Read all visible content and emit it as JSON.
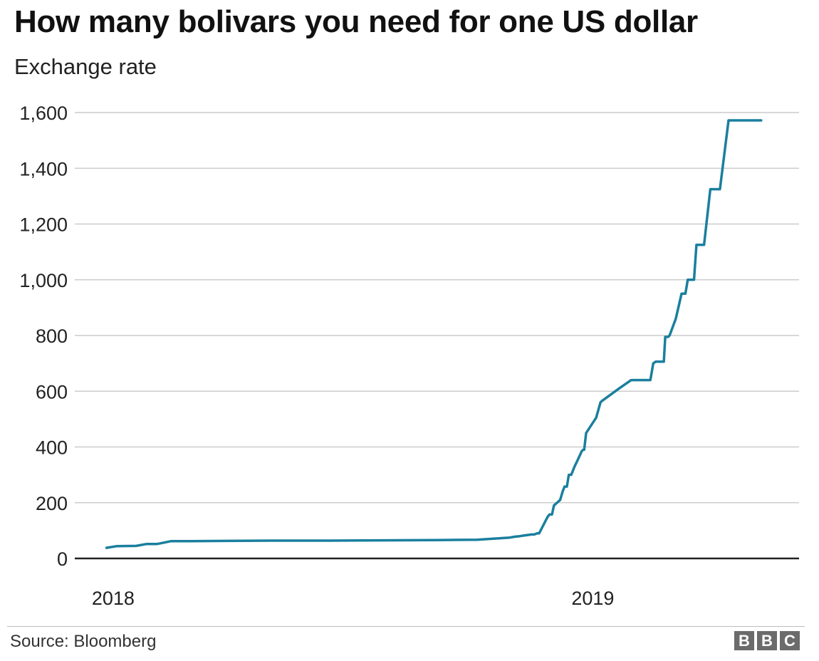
{
  "title": "How many bolivars you need for one US dollar",
  "subtitle": "Exchange rate",
  "source": "Source: Bloomberg",
  "logo": "BBC",
  "colors": {
    "line": "#1a7f9e",
    "grid": "#cccccc",
    "baseline": "#222222",
    "text": "#222222"
  },
  "chart_data": {
    "type": "line",
    "title": "How many bolivars you need for one US dollar",
    "subtitle": "Exchange rate",
    "xlabel": "",
    "ylabel": "",
    "ylim": [
      0,
      1600
    ],
    "yticks": [
      0,
      200,
      400,
      600,
      800,
      1000,
      1200,
      1400,
      1600
    ],
    "ytick_labels": [
      "0",
      "200",
      "400",
      "600",
      "800",
      "1,000",
      "1,200",
      "1,400",
      "1,600"
    ],
    "xlim": [
      2017.92,
      2019.43
    ],
    "xticks": [
      2018,
      2019
    ],
    "xtick_labels": [
      "2018",
      "2019"
    ],
    "grid": true,
    "series": [
      {
        "x": [
          2017.986,
          2018.007,
          2018.048,
          2018.07,
          2018.092,
          2018.121,
          2018.143,
          2018.161,
          2018.234,
          2018.344,
          2018.452,
          2018.674,
          2018.759,
          2018.827,
          2018.837,
          2018.848,
          2018.856,
          2018.872,
          2018.878,
          2018.884,
          2018.888,
          2018.906,
          2018.91,
          2018.915,
          2018.919,
          2018.932,
          2018.937,
          2018.941,
          2018.946,
          2018.95,
          2018.955,
          2018.962,
          2018.969,
          2018.977,
          2018.98,
          2018.982,
          2018.986,
          2019.007,
          2019.016,
          2019.019,
          2019.055,
          2019.08,
          2019.12,
          2019.126,
          2019.131,
          2019.148,
          2019.151,
          2019.157,
          2019.16,
          2019.173,
          2019.185,
          2019.193,
          2019.198,
          2019.211,
          2019.216,
          2019.232,
          2019.245,
          2019.25,
          2019.262,
          2019.265,
          2019.283,
          2019.291,
          2019.296,
          2019.3,
          2019.325,
          2019.335,
          2019.339,
          2019.345,
          2019.351
        ],
        "y": [
          38,
          44,
          45,
          52,
          52,
          62,
          62,
          62,
          63,
          64,
          64,
          66,
          67,
          75,
          78,
          80,
          82,
          86,
          86,
          90,
          90,
          150,
          158,
          158,
          190,
          210,
          240,
          258,
          258,
          300,
          300,
          330,
          355,
          385,
          390,
          390,
          450,
          505,
          560,
          565,
          610,
          640,
          640,
          700,
          706,
          706,
          795,
          795,
          800,
          860,
          950,
          950,
          1000,
          1000,
          1125,
          1125,
          1325,
          1325,
          1325,
          1325,
          1572,
          1572,
          1572,
          1572,
          1572,
          1572,
          1572,
          1572,
          1572
        ]
      }
    ]
  }
}
